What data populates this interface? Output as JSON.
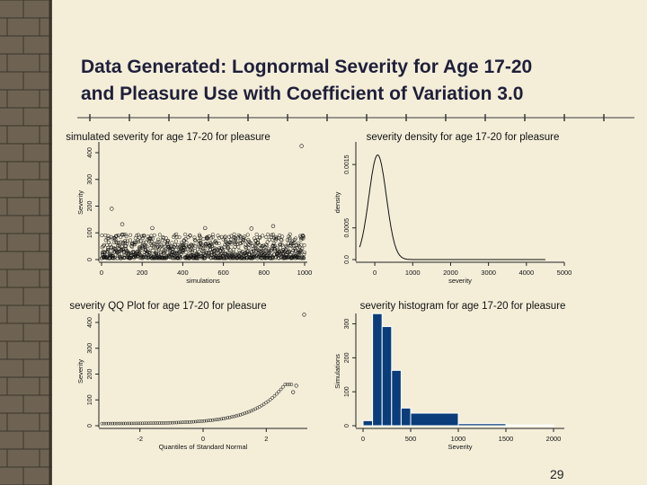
{
  "slide": {
    "title_line1": "Data Generated: Lognormal Severity for Age 17-20",
    "title_line2": "and Pleasure Use with Coefficient of Variation 3.0",
    "page_number": "29"
  },
  "colors": {
    "background": "#f4eed9",
    "brick": "#6e6352",
    "title": "#1f1f3a",
    "bars": "#0a3d7a"
  },
  "chart_data": [
    {
      "type": "scatter",
      "title": "simulated severity for age 17-20 for pleasure",
      "xlabel": "simulations",
      "ylabel": "Severity",
      "xlim": [
        0,
        1000
      ],
      "ylim": [
        0,
        400
      ],
      "xticks": [
        "0",
        "200",
        "400",
        "600",
        "800",
        "1000"
      ],
      "yticks": [
        "0",
        "100",
        "200",
        "300",
        "400"
      ],
      "outliers": [
        {
          "x": 50,
          "y": 190
        },
        {
          "x": 102,
          "y": 132
        },
        {
          "x": 250,
          "y": 118
        },
        {
          "x": 510,
          "y": 118
        },
        {
          "x": 738,
          "y": 116
        },
        {
          "x": 845,
          "y": 125
        },
        {
          "x": 985,
          "y": 425
        }
      ],
      "bulk_range": [
        5,
        95
      ]
    },
    {
      "type": "line",
      "title": "severity density for age 17-20 for pleasure",
      "xlabel": "severity",
      "ylabel": "density",
      "xlim": [
        -500,
        5000
      ],
      "ylim": [
        0,
        0.0018
      ],
      "xticks": [
        "0",
        "1000",
        "2000",
        "3000",
        "4000",
        "5000"
      ],
      "yticks": [
        "0.0",
        "0.0005",
        "0.0015"
      ],
      "peak_x": 75,
      "peak_y": 0.00165,
      "spread": 230
    },
    {
      "type": "scatter",
      "title": "severity QQ Plot for age 17-20 for pleasure",
      "xlabel": "Quantiles of Standard Normal",
      "ylabel": "Severity",
      "xlim": [
        -3.3,
        3.3
      ],
      "ylim": [
        0,
        400
      ],
      "xticks": [
        "-2",
        "0",
        "2"
      ],
      "yticks": [
        "0",
        "100",
        "200",
        "300",
        "400"
      ]
    },
    {
      "type": "bar",
      "title": "severity histogram for age 17-20 for pleasure",
      "xlabel": "Severity",
      "ylabel": "Simulations",
      "xlim": [
        0,
        2000
      ],
      "ylim": [
        0,
        320
      ],
      "xticks": [
        "0",
        "500",
        "1000",
        "1500",
        "2000"
      ],
      "yticks": [
        "0",
        "100",
        "200",
        "300"
      ],
      "bins": [
        {
          "x0": 0,
          "x1": 100,
          "count": 15
        },
        {
          "x0": 100,
          "x1": 200,
          "count": 330
        },
        {
          "x0": 200,
          "x1": 300,
          "count": 292
        },
        {
          "x0": 300,
          "x1": 400,
          "count": 163
        },
        {
          "x0": 400,
          "x1": 500,
          "count": 52
        },
        {
          "x0": 500,
          "x1": 1000,
          "count": 37
        },
        {
          "x0": 1000,
          "x1": 1500,
          "count": 6
        },
        {
          "x0": 1500,
          "x1": 2000,
          "count": 2
        }
      ]
    }
  ]
}
